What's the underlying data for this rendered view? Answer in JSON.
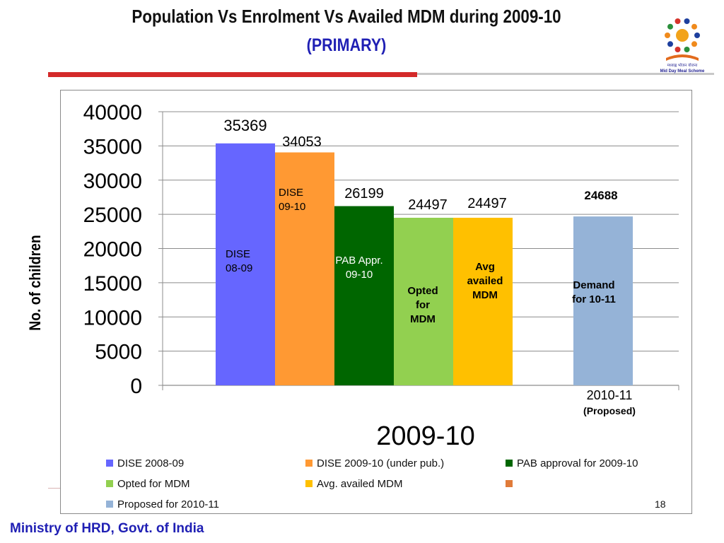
{
  "title_line1": "Population Vs Enrolment Vs Availed MDM during  2009-10",
  "title_line2": "(PRIMARY)",
  "footer": "Ministry of HRD, Govt. of India",
  "slide_number": "18",
  "logo_caption_1": "मध्याह्न भोजन योजना",
  "logo_caption_2": "Mid Day Meal Scheme",
  "colors": {
    "title_blue": "#1f1fb4",
    "rule_red": "#d42a2a",
    "dise_0809": "#6666ff",
    "dise_0910": "#ff9933",
    "pab": "#006600",
    "opted": "#92d050",
    "avg": "#ffc000",
    "proposed": "#95b3d7",
    "unlabeled": "#e07b39"
  },
  "chart_data": {
    "type": "bar",
    "ylabel": "No. of children",
    "xlabel": "2009-10",
    "ylim": [
      0,
      40000
    ],
    "yticks": [
      "0",
      "5000",
      "10000",
      "15000",
      "20000",
      "25000",
      "30000",
      "35000",
      "40000"
    ],
    "grid": true,
    "legend_position": "bottom",
    "series": [
      {
        "name": "DISE 2008-09",
        "color": "#6666ff",
        "value": 35369,
        "value_label": "35369",
        "inner_label": [
          "DISE",
          "08-09"
        ],
        "group": "2009-10"
      },
      {
        "name": "DISE 2009-10  (under pub.)",
        "color": "#ff9933",
        "value": 34053,
        "value_label": "34053",
        "inner_label": [
          "DISE",
          "09-10"
        ],
        "group": "2009-10"
      },
      {
        "name": "PAB approval for 2009-10",
        "color": "#006600",
        "value": 26199,
        "value_label": "26199",
        "inner_label": [
          "PAB Appr.",
          "09-10"
        ],
        "group": "2009-10"
      },
      {
        "name": "Opted for MDM",
        "color": "#92d050",
        "value": 24497,
        "value_label": "24497",
        "inner_label": [
          "Opted",
          "for",
          "MDM"
        ],
        "group": "2009-10"
      },
      {
        "name": "Avg. availed MDM",
        "color": "#ffc000",
        "value": 24497,
        "value_label": "24497",
        "inner_label": [
          "Avg",
          "availed",
          "MDM"
        ],
        "group": "2009-10"
      },
      {
        "name": "Proposed for 2010-11",
        "color": "#95b3d7",
        "value": 24688,
        "value_label": "24688",
        "inner_label": [
          "Demand",
          "for 10-11"
        ],
        "group": "2010-11"
      }
    ],
    "group_labels": {
      "2010-11": [
        "2010-11",
        "(Proposed)"
      ]
    },
    "legend_extra_swatch": "#e07b39"
  }
}
